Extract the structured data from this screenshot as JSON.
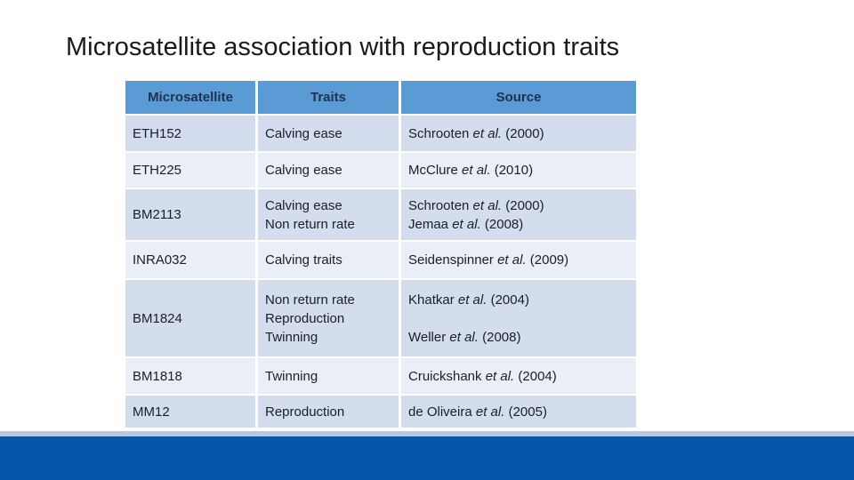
{
  "colors": {
    "slide_bg": "#ffffff",
    "title_text": "#1a1a1a",
    "header_bg": "#5b9bd5",
    "header_text": "#1f3050",
    "row_odd_bg": "#d3ddee",
    "row_even_bg": "#eaeef6",
    "body_text": "#1a1f28",
    "footer_strip": "#b3c9e6",
    "footer_bar": "#0356ab"
  },
  "title": "Microsatellite association with reproduction traits",
  "table": {
    "headers": [
      "Microsatellite",
      "Traits",
      "Source"
    ],
    "rows": [
      {
        "microsatellite": "ETH152",
        "traits": [
          "Calving ease"
        ],
        "sources": [
          {
            "pre": "Schrooten ",
            "etal": "et al.",
            "post": " (2000)"
          }
        ]
      },
      {
        "microsatellite": "ETH225",
        "traits": [
          "Calving ease"
        ],
        "sources": [
          {
            "pre": "McClure ",
            "etal": "et al.",
            "post": " (2010)"
          }
        ]
      },
      {
        "microsatellite": "BM2113",
        "traits": [
          "Calving ease",
          "Non return rate"
        ],
        "sources": [
          {
            "pre": "Schrooten ",
            "etal": "et al.",
            "post": " (2000)"
          },
          {
            "pre": "Jemaa ",
            "etal": "et al.",
            "post": " (2008)"
          }
        ]
      },
      {
        "microsatellite": "INRA032",
        "traits": [
          "Calving traits"
        ],
        "sources": [
          {
            "pre": "Seidenspinner ",
            "etal": "et al.",
            "post": " (2009)"
          }
        ]
      },
      {
        "microsatellite": "BM1824",
        "traits": [
          "Non return rate",
          "Reproduction",
          "Twinning"
        ],
        "sources": [
          {
            "pre": "Khatkar ",
            "etal": "et al.",
            "post": " (2004)"
          },
          {
            "pre": "",
            "etal": "",
            "post": ""
          },
          {
            "pre": "Weller ",
            "etal": "et al.",
            "post": " (2008)"
          }
        ]
      },
      {
        "microsatellite": "BM1818",
        "traits": [
          "Twinning"
        ],
        "sources": [
          {
            "pre": "Cruickshank ",
            "etal": "et al.",
            "post": " (2004)"
          }
        ]
      },
      {
        "microsatellite": "MM12",
        "traits": [
          "Reproduction"
        ],
        "sources": [
          {
            "pre": "de Oliveira ",
            "etal": "et al.",
            "post": " (2005)"
          }
        ]
      }
    ]
  }
}
